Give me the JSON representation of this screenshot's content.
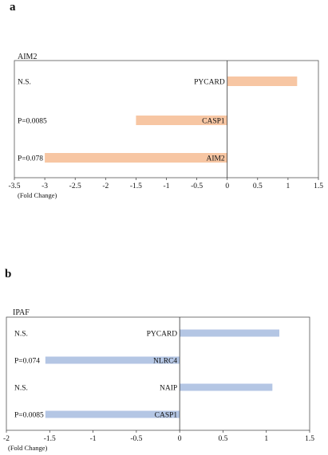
{
  "chart_data": [
    {
      "panel": "a",
      "type": "bar",
      "orientation": "horizontal",
      "title": "AIM2",
      "xlabel": "(Fold Change)",
      "xlim": [
        -3.5,
        1.5
      ],
      "xticks": [
        -3.5,
        -3,
        -2.5,
        -2,
        -1.5,
        -1,
        -0.5,
        0,
        0.5,
        1,
        1.5
      ],
      "tick_labels": [
        "-3.5",
        "-3",
        "-2.5",
        "-2",
        "-1.5",
        "-1",
        "-0.5",
        "0",
        "0.5",
        "1",
        "1.5"
      ],
      "bar_color": "#f7c6a3",
      "categories": [
        "PYCARD",
        "CASP1",
        "AIM2"
      ],
      "values": [
        1.15,
        -1.5,
        -3.0
      ],
      "p_values": [
        "N.S.",
        "P=0.0085",
        "P=0.078"
      ]
    },
    {
      "panel": "b",
      "type": "bar",
      "orientation": "horizontal",
      "title": "IPAF",
      "xlabel": "(Fold Change)",
      "xlim": [
        -2,
        1.5
      ],
      "xticks": [
        -2,
        -1.5,
        -1,
        -0.5,
        0,
        0.5,
        1,
        1.5
      ],
      "tick_labels": [
        "-2",
        "-1.5",
        "-1",
        "-0.5",
        "0",
        "0.5",
        "1",
        "1.5"
      ],
      "bar_color": "#b4c6e4",
      "categories": [
        "PYCARD",
        "NLRC4",
        "NAIP",
        "CASP1"
      ],
      "values": [
        1.15,
        -1.55,
        1.07,
        -1.55
      ],
      "p_values": [
        "N.S.",
        "P=0.074",
        "N.S.",
        "P=0.0085"
      ]
    }
  ]
}
